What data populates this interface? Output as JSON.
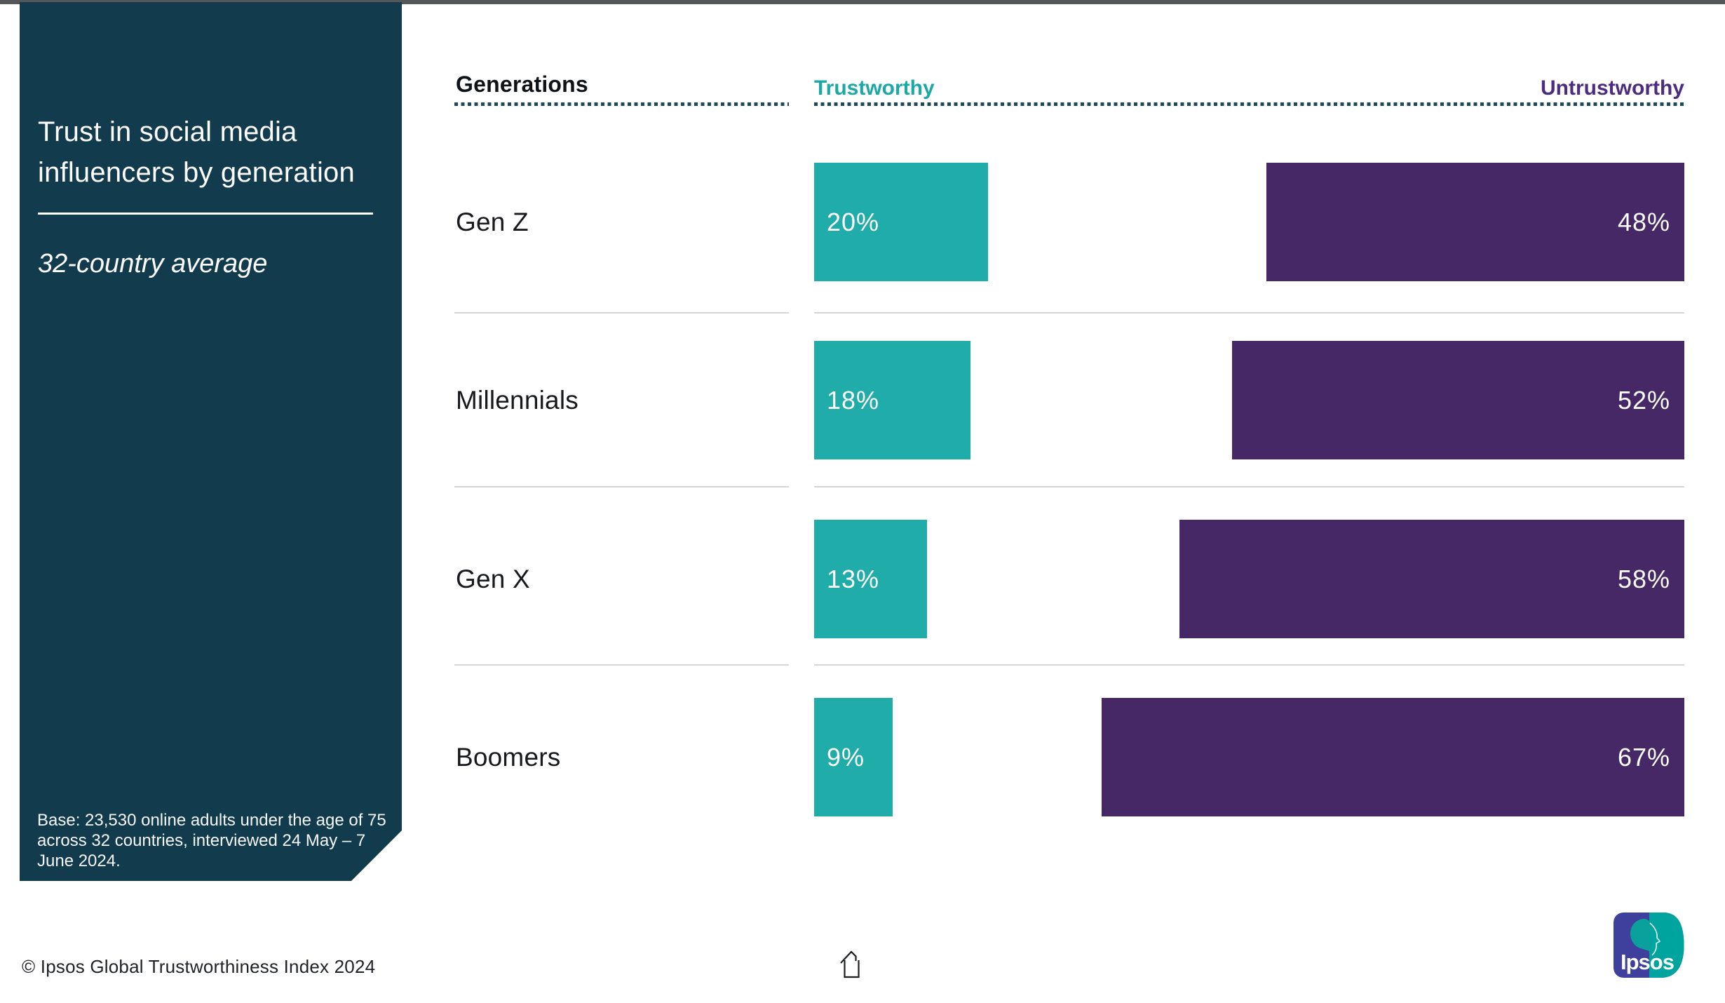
{
  "page": {
    "background": "#ffffff",
    "top_strip_color": "#54565a"
  },
  "sidebar": {
    "background": "#123c4e",
    "title": "Trust in social media influencers by generation",
    "subtitle": "32-country average",
    "base_note": "Base: 23,530 online adults under the age of 75 across 32 countries, interviewed 24 May – 7 June 2024."
  },
  "header": {
    "generations_label": "Generations",
    "trustworthy_label": "Trustworthy",
    "untrustworthy_label": "Untrustworthy",
    "trustworthy_color": "#1ca9a6",
    "untrustworthy_color": "#4b2c80"
  },
  "chart_data": {
    "type": "bar",
    "orientation": "horizontal-diverging",
    "title": "Trust in social media influencers by generation",
    "subtitle": "32-country average",
    "unit": "%",
    "xlim": [
      0,
      100
    ],
    "grid": false,
    "legend_position": "top",
    "categories": [
      "Gen Z",
      "Millennials",
      "Gen X",
      "Boomers"
    ],
    "series": [
      {
        "name": "Trustworthy",
        "color": "#20aca9",
        "values": [
          20,
          18,
          13,
          9
        ]
      },
      {
        "name": "Untrustworthy",
        "color": "#462867",
        "values": [
          48,
          52,
          58,
          67
        ]
      }
    ],
    "rows": [
      {
        "label": "Gen Z",
        "trustworthy": 20,
        "untrustworthy": 48,
        "trustworthy_label": "20%",
        "untrustworthy_label": "48%"
      },
      {
        "label": "Millennials",
        "trustworthy": 18,
        "untrustworthy": 52,
        "trustworthy_label": "18%",
        "untrustworthy_label": "52%"
      },
      {
        "label": "Gen X",
        "trustworthy": 13,
        "untrustworthy": 58,
        "trustworthy_label": "13%",
        "untrustworthy_label": "58%"
      },
      {
        "label": "Boomers",
        "trustworthy": 9,
        "untrustworthy": 67,
        "trustworthy_label": "9%",
        "untrustworthy_label": "67%"
      }
    ]
  },
  "footer": {
    "copyright": "© Ipsos Global Trustworthiness Index 2024",
    "logo_text": "Ipsos",
    "logo_blue": "#3f3f9d",
    "logo_teal": "#00a49f"
  }
}
